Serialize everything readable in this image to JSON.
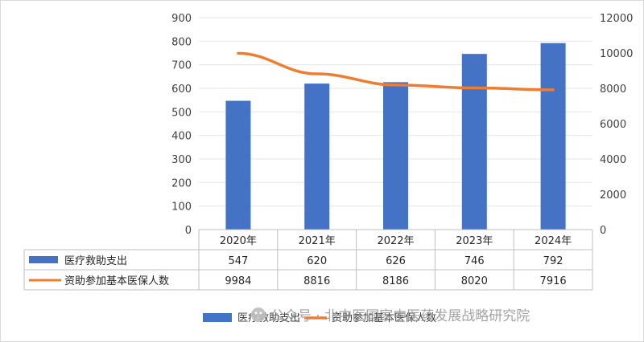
{
  "chart_data": {
    "type": "bar",
    "categories": [
      "2020年",
      "2021年",
      "2022年",
      "2023年",
      "2024年"
    ],
    "series": [
      {
        "name": "医疗救助支出",
        "type": "bar",
        "axis": "left",
        "color": "#4472C4",
        "values": [
          547,
          620,
          626,
          746,
          792
        ]
      },
      {
        "name": "资助参加基本医保人数",
        "type": "line",
        "axis": "right",
        "color": "#ED7D31",
        "values": [
          9984,
          8816,
          8186,
          8020,
          7916
        ]
      }
    ],
    "y_left": {
      "min": 0,
      "max": 900,
      "step": 100,
      "ticks": [
        "0",
        "100",
        "200",
        "300",
        "400",
        "500",
        "600",
        "700",
        "800",
        "900"
      ]
    },
    "y_right": {
      "min": 0,
      "max": 12000,
      "step": 2000,
      "ticks": [
        "0",
        "2000",
        "4000",
        "6000",
        "8000",
        "10000",
        "12000"
      ]
    },
    "title": "",
    "legend_position": "bottom",
    "data_table": true,
    "table_rows": [
      {
        "label": "医疗救助支出",
        "cells": [
          "547",
          "620",
          "626",
          "746",
          "792"
        ]
      },
      {
        "label": "资助参加基本医保人数",
        "cells": [
          "9984",
          "8816",
          "8186",
          "8020",
          "7916"
        ]
      }
    ]
  },
  "legend": {
    "bar_label": "医疗救助支出",
    "line_label": "资助参加基本医保人数"
  },
  "watermark": {
    "text": "公众号 · 北中医国家中医药发展战略研究院"
  }
}
